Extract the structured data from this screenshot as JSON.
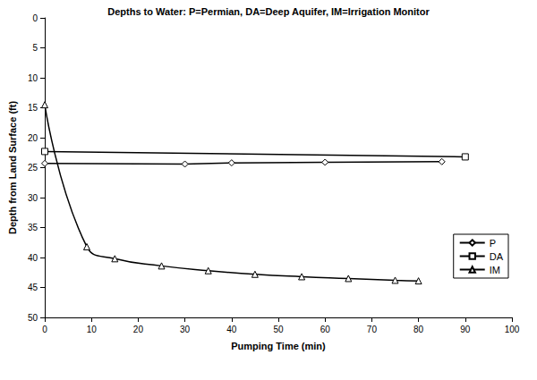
{
  "chart_data": {
    "type": "line",
    "title": "Depths to Water: P=Permian, DA=Deep Aquifer, IM=Irrigation Monitor",
    "x_label": "Pumping Time (min)",
    "y_label": "Depth from Land Surface (ft)",
    "xlim": [
      0,
      100
    ],
    "xticks": [
      0,
      10,
      20,
      30,
      40,
      50,
      60,
      70,
      80,
      90,
      100
    ],
    "ylim": [
      0,
      50
    ],
    "yticks": [
      0,
      5,
      10,
      15,
      20,
      25,
      30,
      35,
      40,
      45,
      50
    ],
    "y_inverted": true,
    "grid": false,
    "legend": "right",
    "series": [
      {
        "name": "P",
        "color": "#000000",
        "marker": "diamond",
        "line_style": "solid",
        "x": [
          0,
          30,
          40,
          60,
          85
        ],
        "values": [
          24.3,
          24.4,
          24.2,
          24.1,
          24.0
        ]
      },
      {
        "name": "DA",
        "color": "#000000",
        "marker": "square",
        "line_style": "solid",
        "x": [
          0,
          90
        ],
        "values": [
          22.3,
          23.2
        ]
      },
      {
        "name": "IM",
        "color": "#000000",
        "marker": "triangle",
        "line_style": "smooth",
        "x": [
          0,
          9,
          15,
          25,
          35,
          45,
          55,
          65,
          75,
          80
        ],
        "values": [
          14.5,
          38.2,
          40.2,
          41.4,
          42.2,
          42.8,
          43.2,
          43.5,
          43.8,
          43.9
        ]
      }
    ]
  }
}
